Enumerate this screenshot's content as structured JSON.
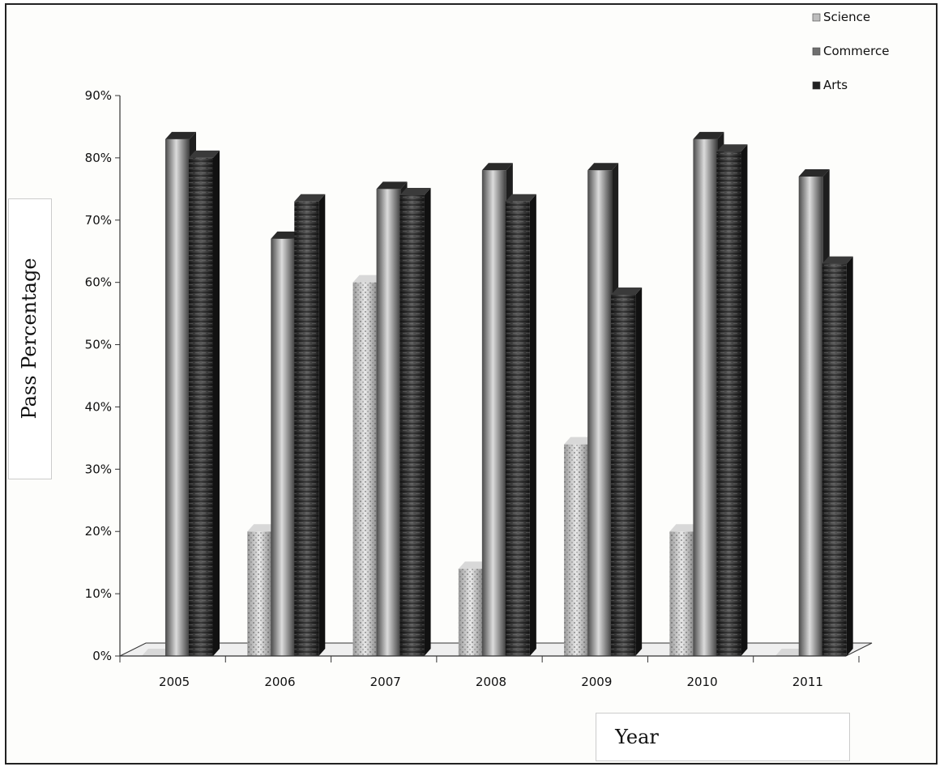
{
  "chart_data": {
    "type": "bar",
    "title": "",
    "xlabel": "Year",
    "ylabel": "Pass Percentage",
    "categories": [
      "2005",
      "2006",
      "2007",
      "2008",
      "2009",
      "2010",
      "2011"
    ],
    "ylim": [
      0,
      90
    ],
    "yticks": [
      "0%",
      "10%",
      "20%",
      "30%",
      "40%",
      "50%",
      "60%",
      "70%",
      "80%",
      "90%"
    ],
    "legend_position": "top-right",
    "series": [
      {
        "name": "Science",
        "values": [
          0,
          20,
          60,
          14,
          34,
          20,
          0
        ],
        "color": "#c8c8c8"
      },
      {
        "name": "Commerce",
        "values": [
          83,
          67,
          75,
          78,
          78,
          83,
          77
        ],
        "color": "#7a7a7a"
      },
      {
        "name": "Arts",
        "values": [
          80,
          73,
          74,
          73,
          58,
          81,
          63
        ],
        "color": "#2e2e2e"
      }
    ]
  }
}
